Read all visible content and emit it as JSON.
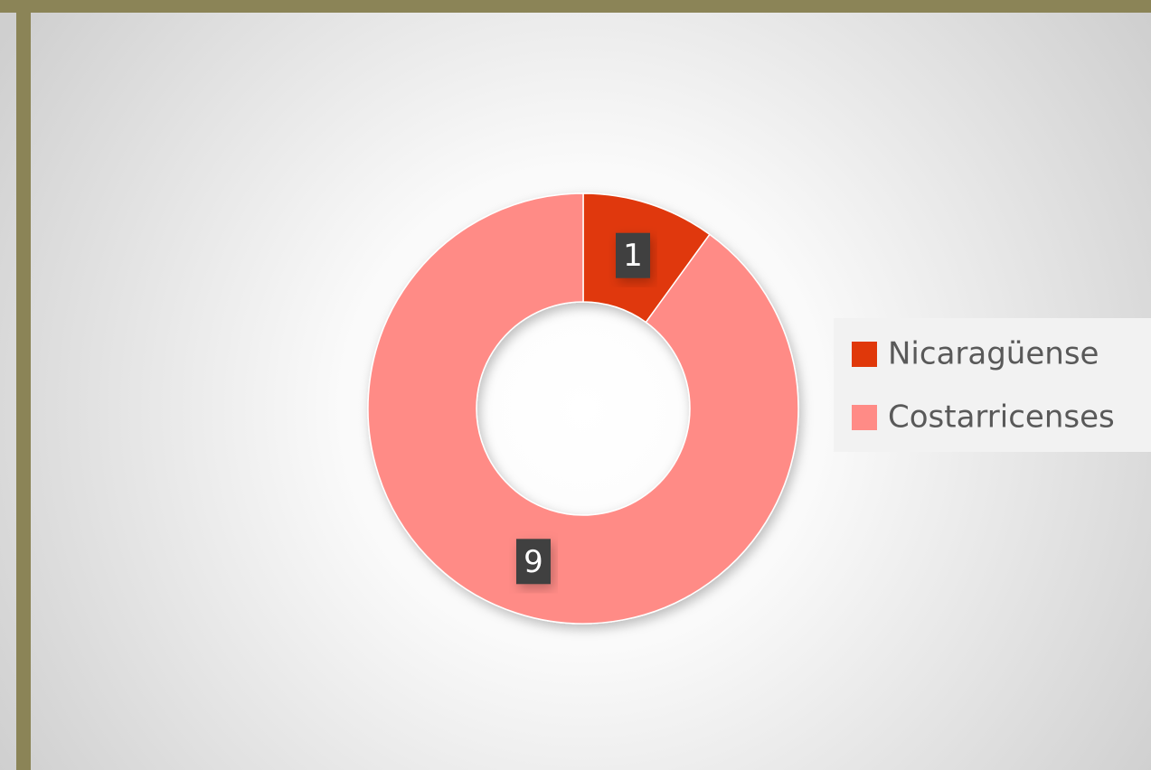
{
  "chart_data": {
    "type": "donut",
    "categories": [
      "Nicaragüense",
      "Costarricenses"
    ],
    "values": [
      1,
      9
    ],
    "colors": [
      "#e0380a",
      "#ff8b86"
    ],
    "legend": "right"
  }
}
